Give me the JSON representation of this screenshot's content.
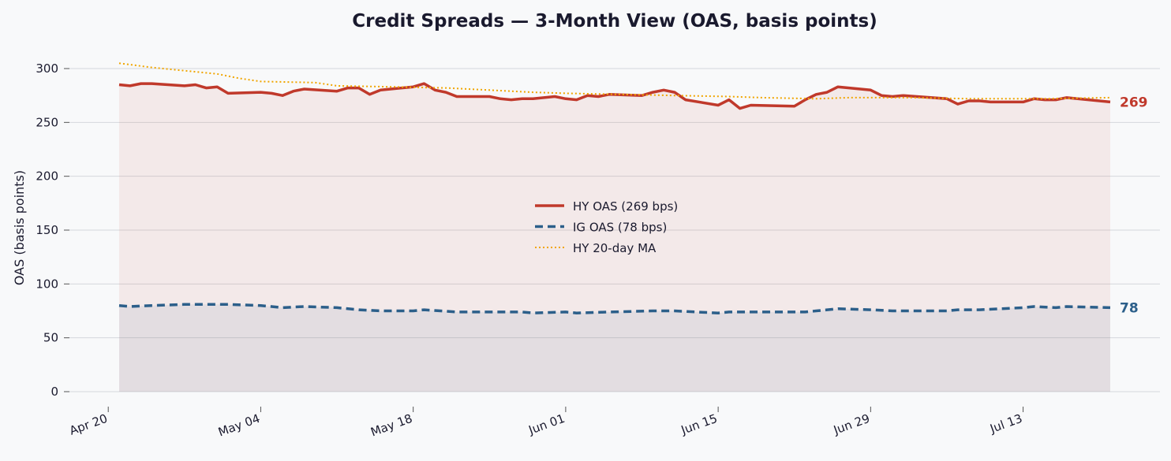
{
  "chart_data": {
    "type": "line",
    "title": "Credit Spreads — 3-Month View (OAS, basis points)",
    "xlabel": "",
    "ylabel": "OAS (basis points)",
    "ylim": [
      0,
      300
    ],
    "yticks": [
      0,
      50,
      100,
      150,
      200,
      250,
      300
    ],
    "x_start": "2024-04-21",
    "x_end": "2024-07-21",
    "xticks": [
      {
        "date": "2024-04-20",
        "label": "Apr 20"
      },
      {
        "date": "2024-05-04",
        "label": "May 04"
      },
      {
        "date": "2024-05-18",
        "label": "May 18"
      },
      {
        "date": "2024-06-01",
        "label": "Jun 01"
      },
      {
        "date": "2024-06-15",
        "label": "Jun 15"
      },
      {
        "date": "2024-06-29",
        "label": "Jun 29"
      },
      {
        "date": "2024-07-13",
        "label": "Jul 13"
      }
    ],
    "grid": "horizontal",
    "legend_position": "center",
    "series": [
      {
        "name": "HY OAS  (269 bps)",
        "color": "#c0392b",
        "style": "solid",
        "fill": true,
        "end_label": "269",
        "points": [
          [
            "2024-04-21",
            285
          ],
          [
            "2024-04-22",
            284
          ],
          [
            "2024-04-23",
            286
          ],
          [
            "2024-04-24",
            286
          ],
          [
            "2024-04-27",
            284
          ],
          [
            "2024-04-28",
            285
          ],
          [
            "2024-04-29",
            282
          ],
          [
            "2024-04-30",
            283
          ],
          [
            "2024-05-01",
            277
          ],
          [
            "2024-05-04",
            278
          ],
          [
            "2024-05-05",
            277
          ],
          [
            "2024-05-06",
            275
          ],
          [
            "2024-05-07",
            279
          ],
          [
            "2024-05-08",
            281
          ],
          [
            "2024-05-11",
            279
          ],
          [
            "2024-05-12",
            282
          ],
          [
            "2024-05-13",
            282
          ],
          [
            "2024-05-14",
            276
          ],
          [
            "2024-05-15",
            280
          ],
          [
            "2024-05-18",
            283
          ],
          [
            "2024-05-19",
            286
          ],
          [
            "2024-05-20",
            280
          ],
          [
            "2024-05-21",
            278
          ],
          [
            "2024-05-22",
            274
          ],
          [
            "2024-05-25",
            274
          ],
          [
            "2024-05-26",
            272
          ],
          [
            "2024-05-27",
            271
          ],
          [
            "2024-05-28",
            272
          ],
          [
            "2024-05-29",
            272
          ],
          [
            "2024-05-31",
            274
          ],
          [
            "2024-06-01",
            272
          ],
          [
            "2024-06-02",
            271
          ],
          [
            "2024-06-03",
            275
          ],
          [
            "2024-06-04",
            274
          ],
          [
            "2024-06-05",
            276
          ],
          [
            "2024-06-08",
            275
          ],
          [
            "2024-06-09",
            278
          ],
          [
            "2024-06-10",
            280
          ],
          [
            "2024-06-11",
            278
          ],
          [
            "2024-06-12",
            271
          ],
          [
            "2024-06-15",
            266
          ],
          [
            "2024-06-16",
            271
          ],
          [
            "2024-06-17",
            263
          ],
          [
            "2024-06-18",
            266
          ],
          [
            "2024-06-22",
            265
          ],
          [
            "2024-06-23",
            271
          ],
          [
            "2024-06-24",
            276
          ],
          [
            "2024-06-25",
            278
          ],
          [
            "2024-06-26",
            283
          ],
          [
            "2024-06-29",
            280
          ],
          [
            "2024-06-30",
            275
          ],
          [
            "2024-07-01",
            274
          ],
          [
            "2024-07-02",
            275
          ],
          [
            "2024-07-06",
            272
          ],
          [
            "2024-07-07",
            267
          ],
          [
            "2024-07-08",
            270
          ],
          [
            "2024-07-09",
            270
          ],
          [
            "2024-07-10",
            269
          ],
          [
            "2024-07-13",
            269
          ],
          [
            "2024-07-14",
            272
          ],
          [
            "2024-07-15",
            271
          ],
          [
            "2024-07-16",
            271
          ],
          [
            "2024-07-17",
            273
          ],
          [
            "2024-07-21",
            269
          ]
        ]
      },
      {
        "name": "IG OAS  (78 bps)",
        "color": "#2c5f8a",
        "style": "dashed",
        "fill": true,
        "end_label": "78",
        "points": [
          [
            "2024-04-21",
            80
          ],
          [
            "2024-04-22",
            79
          ],
          [
            "2024-04-24",
            80
          ],
          [
            "2024-04-27",
            81
          ],
          [
            "2024-05-01",
            81
          ],
          [
            "2024-05-04",
            80
          ],
          [
            "2024-05-06",
            78
          ],
          [
            "2024-05-08",
            79
          ],
          [
            "2024-05-11",
            78
          ],
          [
            "2024-05-13",
            76
          ],
          [
            "2024-05-15",
            75
          ],
          [
            "2024-05-18",
            75
          ],
          [
            "2024-05-19",
            76
          ],
          [
            "2024-05-22",
            74
          ],
          [
            "2024-05-28",
            74
          ],
          [
            "2024-05-29",
            73
          ],
          [
            "2024-06-01",
            74
          ],
          [
            "2024-06-02",
            73
          ],
          [
            "2024-06-05",
            74
          ],
          [
            "2024-06-09",
            75
          ],
          [
            "2024-06-11",
            75
          ],
          [
            "2024-06-13",
            74
          ],
          [
            "2024-06-15",
            73
          ],
          [
            "2024-06-16",
            74
          ],
          [
            "2024-06-17",
            74
          ],
          [
            "2024-06-23",
            74
          ],
          [
            "2024-06-24",
            75
          ],
          [
            "2024-06-26",
            77
          ],
          [
            "2024-06-29",
            76
          ],
          [
            "2024-07-01",
            75
          ],
          [
            "2024-07-06",
            75
          ],
          [
            "2024-07-07",
            76
          ],
          [
            "2024-07-09",
            76
          ],
          [
            "2024-07-13",
            78
          ],
          [
            "2024-07-14",
            79
          ],
          [
            "2024-07-16",
            78
          ],
          [
            "2024-07-17",
            79
          ],
          [
            "2024-07-21",
            78
          ]
        ]
      },
      {
        "name": "HY 20-day MA",
        "color": "#f0a500",
        "style": "dotted",
        "fill": false,
        "points": [
          [
            "2024-04-21",
            305
          ],
          [
            "2024-04-24",
            301
          ],
          [
            "2024-04-27",
            298
          ],
          [
            "2024-04-30",
            295
          ],
          [
            "2024-05-02",
            291
          ],
          [
            "2024-05-04",
            288
          ],
          [
            "2024-05-09",
            287
          ],
          [
            "2024-05-11",
            284
          ],
          [
            "2024-05-16",
            283
          ],
          [
            "2024-05-21",
            282
          ],
          [
            "2024-05-25",
            280
          ],
          [
            "2024-05-29",
            278
          ],
          [
            "2024-06-01",
            277
          ],
          [
            "2024-06-06",
            276
          ],
          [
            "2024-06-11",
            275
          ],
          [
            "2024-06-16",
            274
          ],
          [
            "2024-06-19",
            273
          ],
          [
            "2024-06-24",
            272
          ],
          [
            "2024-06-27",
            273
          ],
          [
            "2024-07-03",
            273
          ],
          [
            "2024-07-08",
            272
          ],
          [
            "2024-07-15",
            272
          ],
          [
            "2024-07-21",
            273
          ]
        ]
      }
    ]
  }
}
